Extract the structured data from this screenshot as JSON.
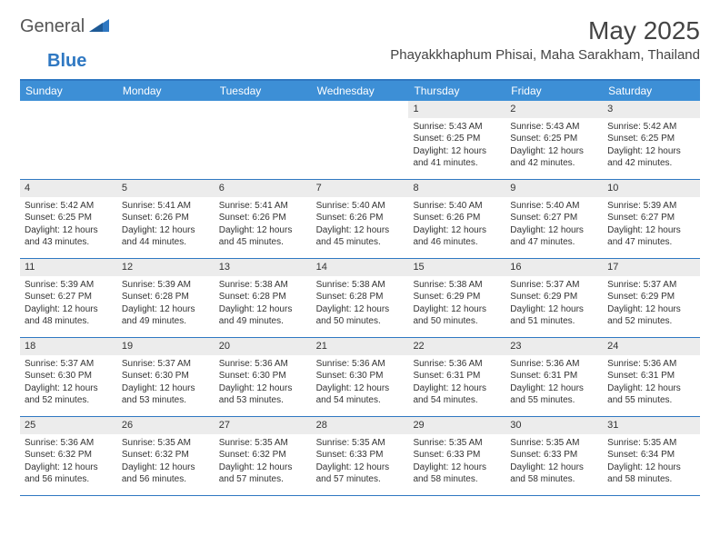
{
  "logo": {
    "general": "General",
    "blue": "Blue"
  },
  "title": "May 2025",
  "location": "Phayakkhaphum Phisai, Maha Sarakham, Thailand",
  "colors": {
    "header_bg": "#3d8fd6",
    "border": "#2f78c2",
    "daynum_bg": "#ececec",
    "text": "#333333",
    "page_bg": "#ffffff"
  },
  "typography": {
    "title_fontsize": 28,
    "location_fontsize": 15,
    "dow_fontsize": 12,
    "body_fontsize": 10
  },
  "days_of_week": [
    "Sunday",
    "Monday",
    "Tuesday",
    "Wednesday",
    "Thursday",
    "Friday",
    "Saturday"
  ],
  "weeks": [
    [
      {
        "empty": true
      },
      {
        "empty": true
      },
      {
        "empty": true
      },
      {
        "empty": true
      },
      {
        "n": "1",
        "sunrise": "5:43 AM",
        "sunset": "6:25 PM",
        "daylight": "12 hours and 41 minutes."
      },
      {
        "n": "2",
        "sunrise": "5:43 AM",
        "sunset": "6:25 PM",
        "daylight": "12 hours and 42 minutes."
      },
      {
        "n": "3",
        "sunrise": "5:42 AM",
        "sunset": "6:25 PM",
        "daylight": "12 hours and 42 minutes."
      }
    ],
    [
      {
        "n": "4",
        "sunrise": "5:42 AM",
        "sunset": "6:25 PM",
        "daylight": "12 hours and 43 minutes."
      },
      {
        "n": "5",
        "sunrise": "5:41 AM",
        "sunset": "6:26 PM",
        "daylight": "12 hours and 44 minutes."
      },
      {
        "n": "6",
        "sunrise": "5:41 AM",
        "sunset": "6:26 PM",
        "daylight": "12 hours and 45 minutes."
      },
      {
        "n": "7",
        "sunrise": "5:40 AM",
        "sunset": "6:26 PM",
        "daylight": "12 hours and 45 minutes."
      },
      {
        "n": "8",
        "sunrise": "5:40 AM",
        "sunset": "6:26 PM",
        "daylight": "12 hours and 46 minutes."
      },
      {
        "n": "9",
        "sunrise": "5:40 AM",
        "sunset": "6:27 PM",
        "daylight": "12 hours and 47 minutes."
      },
      {
        "n": "10",
        "sunrise": "5:39 AM",
        "sunset": "6:27 PM",
        "daylight": "12 hours and 47 minutes."
      }
    ],
    [
      {
        "n": "11",
        "sunrise": "5:39 AM",
        "sunset": "6:27 PM",
        "daylight": "12 hours and 48 minutes."
      },
      {
        "n": "12",
        "sunrise": "5:39 AM",
        "sunset": "6:28 PM",
        "daylight": "12 hours and 49 minutes."
      },
      {
        "n": "13",
        "sunrise": "5:38 AM",
        "sunset": "6:28 PM",
        "daylight": "12 hours and 49 minutes."
      },
      {
        "n": "14",
        "sunrise": "5:38 AM",
        "sunset": "6:28 PM",
        "daylight": "12 hours and 50 minutes."
      },
      {
        "n": "15",
        "sunrise": "5:38 AM",
        "sunset": "6:29 PM",
        "daylight": "12 hours and 50 minutes."
      },
      {
        "n": "16",
        "sunrise": "5:37 AM",
        "sunset": "6:29 PM",
        "daylight": "12 hours and 51 minutes."
      },
      {
        "n": "17",
        "sunrise": "5:37 AM",
        "sunset": "6:29 PM",
        "daylight": "12 hours and 52 minutes."
      }
    ],
    [
      {
        "n": "18",
        "sunrise": "5:37 AM",
        "sunset": "6:30 PM",
        "daylight": "12 hours and 52 minutes."
      },
      {
        "n": "19",
        "sunrise": "5:37 AM",
        "sunset": "6:30 PM",
        "daylight": "12 hours and 53 minutes."
      },
      {
        "n": "20",
        "sunrise": "5:36 AM",
        "sunset": "6:30 PM",
        "daylight": "12 hours and 53 minutes."
      },
      {
        "n": "21",
        "sunrise": "5:36 AM",
        "sunset": "6:30 PM",
        "daylight": "12 hours and 54 minutes."
      },
      {
        "n": "22",
        "sunrise": "5:36 AM",
        "sunset": "6:31 PM",
        "daylight": "12 hours and 54 minutes."
      },
      {
        "n": "23",
        "sunrise": "5:36 AM",
        "sunset": "6:31 PM",
        "daylight": "12 hours and 55 minutes."
      },
      {
        "n": "24",
        "sunrise": "5:36 AM",
        "sunset": "6:31 PM",
        "daylight": "12 hours and 55 minutes."
      }
    ],
    [
      {
        "n": "25",
        "sunrise": "5:36 AM",
        "sunset": "6:32 PM",
        "daylight": "12 hours and 56 minutes."
      },
      {
        "n": "26",
        "sunrise": "5:35 AM",
        "sunset": "6:32 PM",
        "daylight": "12 hours and 56 minutes."
      },
      {
        "n": "27",
        "sunrise": "5:35 AM",
        "sunset": "6:32 PM",
        "daylight": "12 hours and 57 minutes."
      },
      {
        "n": "28",
        "sunrise": "5:35 AM",
        "sunset": "6:33 PM",
        "daylight": "12 hours and 57 minutes."
      },
      {
        "n": "29",
        "sunrise": "5:35 AM",
        "sunset": "6:33 PM",
        "daylight": "12 hours and 58 minutes."
      },
      {
        "n": "30",
        "sunrise": "5:35 AM",
        "sunset": "6:33 PM",
        "daylight": "12 hours and 58 minutes."
      },
      {
        "n": "31",
        "sunrise": "5:35 AM",
        "sunset": "6:34 PM",
        "daylight": "12 hours and 58 minutes."
      }
    ]
  ],
  "labels": {
    "sunrise": "Sunrise:",
    "sunset": "Sunset:",
    "daylight": "Daylight:"
  }
}
